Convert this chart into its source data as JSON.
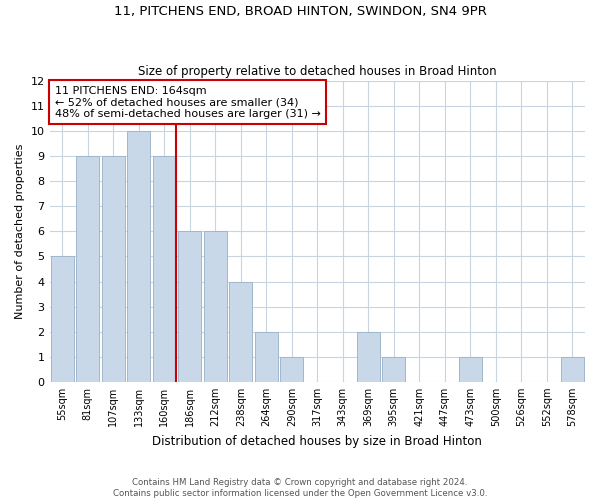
{
  "title": "11, PITCHENS END, BROAD HINTON, SWINDON, SN4 9PR",
  "subtitle": "Size of property relative to detached houses in Broad Hinton",
  "xlabel": "Distribution of detached houses by size in Broad Hinton",
  "ylabel": "Number of detached properties",
  "categories": [
    "55sqm",
    "81sqm",
    "107sqm",
    "133sqm",
    "160sqm",
    "186sqm",
    "212sqm",
    "238sqm",
    "264sqm",
    "290sqm",
    "317sqm",
    "343sqm",
    "369sqm",
    "395sqm",
    "421sqm",
    "447sqm",
    "473sqm",
    "500sqm",
    "526sqm",
    "552sqm",
    "578sqm"
  ],
  "values": [
    5,
    9,
    9,
    10,
    9,
    6,
    6,
    4,
    2,
    1,
    0,
    0,
    2,
    1,
    0,
    0,
    1,
    0,
    0,
    0,
    1
  ],
  "bar_color": "#c8d8e8",
  "bar_edge_color": "#a0b8cc",
  "highlight_index": 4,
  "highlight_line_color": "#cc0000",
  "ylim": [
    0,
    12
  ],
  "yticks": [
    0,
    1,
    2,
    3,
    4,
    5,
    6,
    7,
    8,
    9,
    10,
    11,
    12
  ],
  "annotation_title": "11 PITCHENS END: 164sqm",
  "annotation_line1": "← 52% of detached houses are smaller (34)",
  "annotation_line2": "48% of semi-detached houses are larger (31) →",
  "annotation_box_color": "#ffffff",
  "annotation_box_edge": "#cc0000",
  "footer_line1": "Contains HM Land Registry data © Crown copyright and database right 2024.",
  "footer_line2": "Contains public sector information licensed under the Open Government Licence v3.0.",
  "bg_color": "#ffffff",
  "grid_color": "#c8d4e0"
}
